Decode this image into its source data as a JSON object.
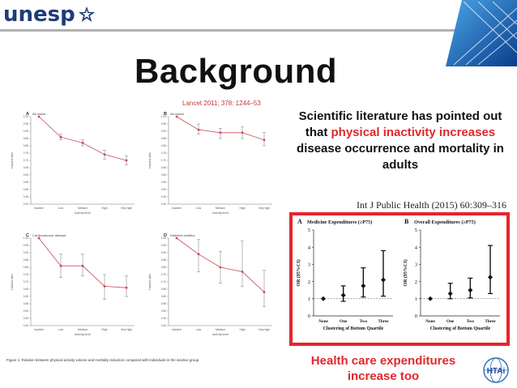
{
  "header": {
    "logo_text": "unesp"
  },
  "slide": {
    "title": "Background",
    "text_part1": "Scientific literature has pointed out that ",
    "text_hl1": "physical inactivity",
    "text_hl2": "increases",
    "text_part2": " disease occurrence and mortality in adults",
    "citation_right": "Int J Public Health (2015) 60:309–316",
    "health_line1": "Health care expenditures",
    "health_line2": "increase too",
    "hta_label": "HTAi"
  },
  "left_figure": {
    "citation": "Lancet 2011; 378: 1244–53",
    "caption": "Figure 1: Relation between physical activity volume and mortality reduction compared with individuals in the inactive group",
    "ylabel": "Hazard ratio",
    "xlabel": "Activity level",
    "categories": [
      "Inactive",
      "Low",
      "Medium",
      "High",
      "Very high"
    ],
    "y_ticks": [
      "1.00",
      "0.95",
      "0.90",
      "0.85",
      "0.80",
      "0.75",
      "0.70",
      "0.65",
      "0.60",
      "0.55",
      "0.50",
      "0.45",
      "0.40"
    ],
    "panels": [
      {
        "letter": "A",
        "title": "All cause"
      },
      {
        "letter": "B",
        "title": "All cancer"
      },
      {
        "letter": "C",
        "title": "Cardiovascular disease"
      },
      {
        "letter": "D",
        "title": "Diabetes mellitus"
      }
    ]
  },
  "chart_data": [
    {
      "type": "line",
      "title": "All cause",
      "xlabel": "Activity level",
      "ylabel": "Hazard ratio",
      "categories": [
        "Inactive",
        "Low",
        "Medium",
        "High",
        "Very high"
      ],
      "values": [
        1.0,
        0.86,
        0.82,
        0.74,
        0.7
      ],
      "err_low": [
        1.0,
        0.84,
        0.8,
        0.71,
        0.67
      ],
      "err_high": [
        1.0,
        0.88,
        0.84,
        0.77,
        0.73
      ],
      "ylim": [
        0.4,
        1.0
      ]
    },
    {
      "type": "line",
      "title": "All cancer",
      "xlabel": "Activity level",
      "ylabel": "Hazard ratio",
      "categories": [
        "Inactive",
        "Low",
        "Medium",
        "High",
        "Very high"
      ],
      "values": [
        1.0,
        0.91,
        0.89,
        0.89,
        0.84
      ],
      "err_low": [
        1.0,
        0.88,
        0.85,
        0.85,
        0.8
      ],
      "err_high": [
        1.0,
        0.95,
        0.92,
        0.93,
        0.89
      ],
      "ylim": [
        0.4,
        1.0
      ]
    },
    {
      "type": "line",
      "title": "Cardiovascular disease",
      "xlabel": "Activity level",
      "ylabel": "Hazard ratio",
      "categories": [
        "Inactive",
        "Low",
        "Medium",
        "High",
        "Very high"
      ],
      "values": [
        1.0,
        0.81,
        0.81,
        0.67,
        0.66
      ],
      "err_low": [
        1.0,
        0.73,
        0.74,
        0.58,
        0.6
      ],
      "err_high": [
        1.0,
        0.89,
        0.89,
        0.75,
        0.74
      ],
      "ylim": [
        0.4,
        1.0
      ]
    },
    {
      "type": "line",
      "title": "Diabetes mellitus",
      "xlabel": "Activity level",
      "ylabel": "Hazard ratio",
      "categories": [
        "Inactive",
        "Low",
        "Medium",
        "High",
        "Very high"
      ],
      "values": [
        1.0,
        0.89,
        0.8,
        0.77,
        0.63
      ],
      "err_low": [
        1.0,
        0.77,
        0.69,
        0.67,
        0.53
      ],
      "err_high": [
        1.0,
        0.99,
        0.91,
        0.98,
        0.78
      ],
      "ylim": [
        0.4,
        1.0
      ]
    },
    {
      "type": "scatter",
      "title": "Medicine Expenditures (≥P75)",
      "letter": "A",
      "xlabel": "Clustering of Bottom Quartile",
      "ylabel": "OR (95%CI)",
      "categories": [
        "None",
        "One",
        "Two",
        "Three"
      ],
      "values": [
        1.0,
        1.2,
        1.75,
        2.1
      ],
      "err_low": [
        1.0,
        0.85,
        1.1,
        1.15
      ],
      "err_high": [
        1.0,
        1.75,
        2.8,
        3.8
      ],
      "ylim": [
        0,
        5
      ],
      "y_ticks": [
        "0",
        "1",
        "2",
        "3",
        "4",
        "5"
      ]
    },
    {
      "type": "scatter",
      "title": "Overall Expenditures (≥P75)",
      "letter": "B",
      "xlabel": "Clustering of Bottom Quartile",
      "ylabel": "OR (95%CI)",
      "categories": [
        "None",
        "One",
        "Two",
        "Three"
      ],
      "values": [
        1.0,
        1.3,
        1.5,
        2.25
      ],
      "err_low": [
        1.0,
        1.0,
        1.05,
        1.3
      ],
      "err_high": [
        1.0,
        1.9,
        2.2,
        4.1
      ],
      "ylim": [
        0,
        5
      ],
      "y_ticks": [
        "0",
        "1",
        "2",
        "3",
        "4",
        "5"
      ]
    }
  ]
}
